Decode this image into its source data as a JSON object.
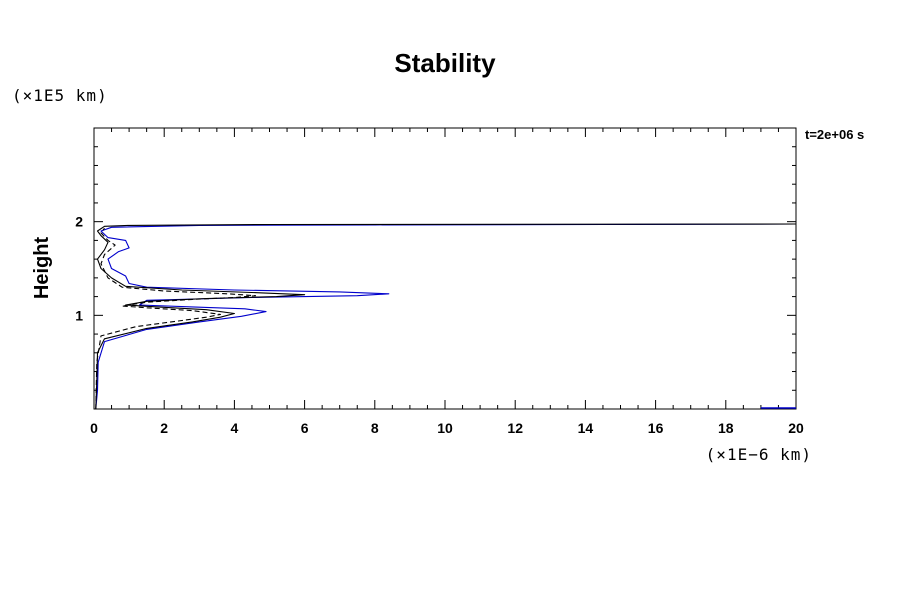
{
  "chart_data": {
    "type": "line",
    "title": "Stability",
    "xlabel": "",
    "ylabel": "Height",
    "x_unit": "(×1E−6 km)",
    "y_unit": "(×1E5 km)",
    "annotation": "t=2e+06 s",
    "xlim": [
      0,
      20
    ],
    "ylim": [
      0,
      3
    ],
    "x_ticks": [
      "0",
      "2",
      "4",
      "6",
      "8",
      "10",
      "12",
      "14",
      "16",
      "18",
      "20"
    ],
    "y_ticks": [
      "1",
      "2"
    ],
    "grid": false,
    "series": [
      {
        "style": "solid",
        "color": "#0000cc",
        "points": [
          [
            0.05,
            0.0
          ],
          [
            0.1,
            0.2
          ],
          [
            0.12,
            0.5
          ],
          [
            0.3,
            0.72
          ],
          [
            1.5,
            0.85
          ],
          [
            3.0,
            0.93
          ],
          [
            4.2,
            0.99
          ],
          [
            4.9,
            1.04
          ],
          [
            4.3,
            1.07
          ],
          [
            2.8,
            1.09
          ],
          [
            1.3,
            1.11
          ],
          [
            1.5,
            1.16
          ],
          [
            4.5,
            1.19
          ],
          [
            7.5,
            1.21
          ],
          [
            8.4,
            1.23
          ],
          [
            7.0,
            1.25
          ],
          [
            4.0,
            1.27
          ],
          [
            1.5,
            1.3
          ],
          [
            1.0,
            1.34
          ],
          [
            0.9,
            1.42
          ],
          [
            0.5,
            1.5
          ],
          [
            0.4,
            1.6
          ],
          [
            0.7,
            1.68
          ],
          [
            1.0,
            1.72
          ],
          [
            0.9,
            1.8
          ],
          [
            0.4,
            1.83
          ],
          [
            0.2,
            1.9
          ],
          [
            0.5,
            1.94
          ],
          [
            3.0,
            1.96
          ],
          [
            8.0,
            1.965
          ],
          [
            14.5,
            1.97
          ],
          [
            20.0,
            1.975
          ]
        ]
      },
      {
        "style": "solid",
        "color": "#000000",
        "points": [
          [
            0.05,
            0.0
          ],
          [
            0.08,
            0.3
          ],
          [
            0.1,
            0.6
          ],
          [
            0.3,
            0.75
          ],
          [
            1.5,
            0.86
          ],
          [
            2.8,
            0.93
          ],
          [
            3.6,
            0.98
          ],
          [
            4.0,
            1.02
          ],
          [
            3.2,
            1.06
          ],
          [
            1.8,
            1.09
          ],
          [
            0.9,
            1.11
          ],
          [
            1.5,
            1.15
          ],
          [
            3.2,
            1.18
          ],
          [
            5.2,
            1.2
          ],
          [
            6.0,
            1.22
          ],
          [
            4.8,
            1.24
          ],
          [
            2.5,
            1.27
          ],
          [
            0.9,
            1.31
          ],
          [
            0.5,
            1.4
          ],
          [
            0.2,
            1.5
          ],
          [
            0.1,
            1.6
          ],
          [
            0.3,
            1.7
          ],
          [
            0.4,
            1.78
          ],
          [
            0.2,
            1.85
          ],
          [
            0.1,
            1.9
          ],
          [
            0.3,
            1.95
          ],
          [
            1.0,
            1.96
          ],
          [
            5.0,
            1.97
          ],
          [
            20.0,
            1.975
          ]
        ]
      },
      {
        "style": "dashed",
        "color": "#000000",
        "points": [
          [
            0.05,
            0.0
          ],
          [
            0.08,
            0.5
          ],
          [
            0.2,
            0.78
          ],
          [
            1.2,
            0.88
          ],
          [
            2.4,
            0.94
          ],
          [
            3.2,
            0.98
          ],
          [
            3.6,
            1.01
          ],
          [
            2.8,
            1.05
          ],
          [
            1.5,
            1.08
          ],
          [
            0.8,
            1.1
          ],
          [
            1.5,
            1.14
          ],
          [
            2.8,
            1.17
          ],
          [
            4.0,
            1.19
          ],
          [
            4.6,
            1.21
          ],
          [
            3.8,
            1.23
          ],
          [
            2.0,
            1.26
          ],
          [
            0.8,
            1.3
          ],
          [
            0.4,
            1.4
          ],
          [
            0.2,
            1.55
          ],
          [
            0.3,
            1.65
          ],
          [
            0.6,
            1.75
          ],
          [
            0.4,
            1.8
          ],
          [
            0.2,
            1.88
          ],
          [
            0.3,
            1.93
          ]
        ]
      }
    ]
  }
}
